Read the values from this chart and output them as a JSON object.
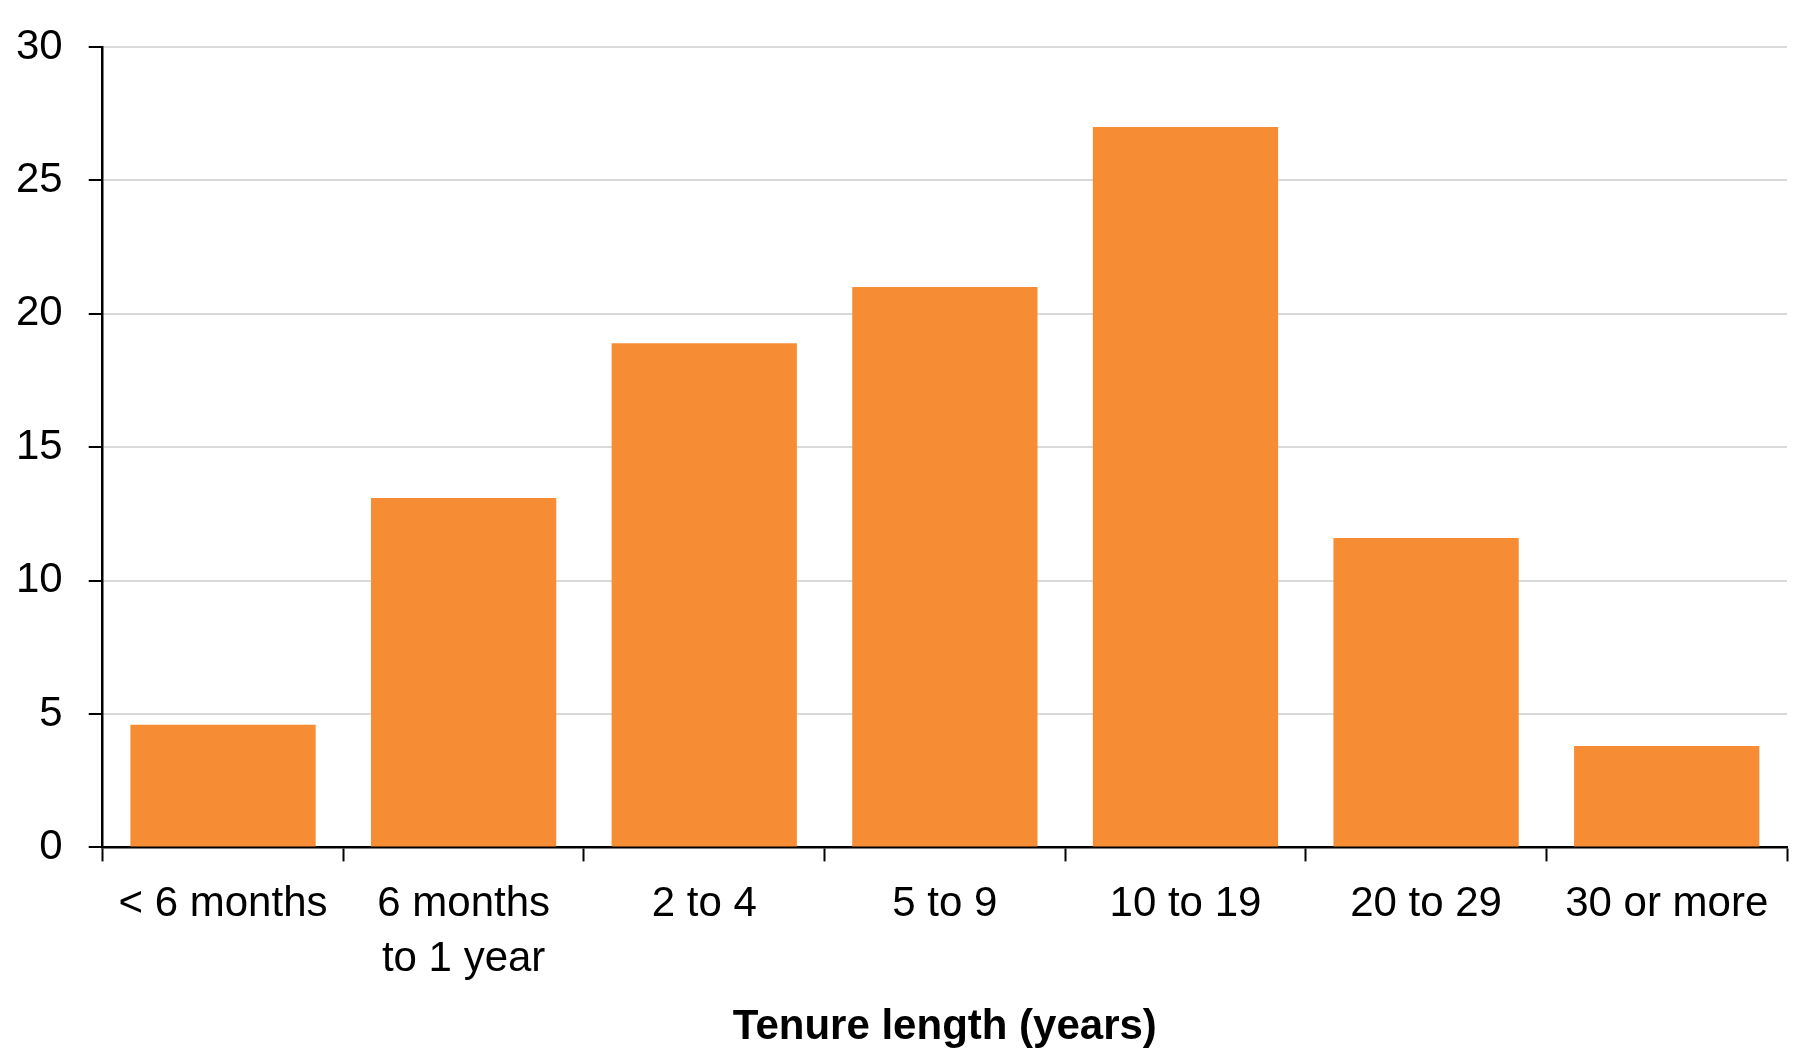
{
  "chart_data": {
    "type": "bar",
    "xlabel": "Tenure length (years)",
    "categories": [
      "< 6 months",
      "6 months to 1 year",
      "2 to 4",
      "5 to 9",
      "10 to 19",
      "20 to 29",
      "30 or more"
    ],
    "values": [
      4.6,
      13.1,
      18.9,
      21.0,
      27.0,
      11.6,
      3.8
    ],
    "color": "#f68c34",
    "ylim": [
      0,
      30
    ],
    "yticks": [
      0,
      5,
      10,
      15,
      20,
      25,
      30
    ],
    "grid": "y"
  }
}
